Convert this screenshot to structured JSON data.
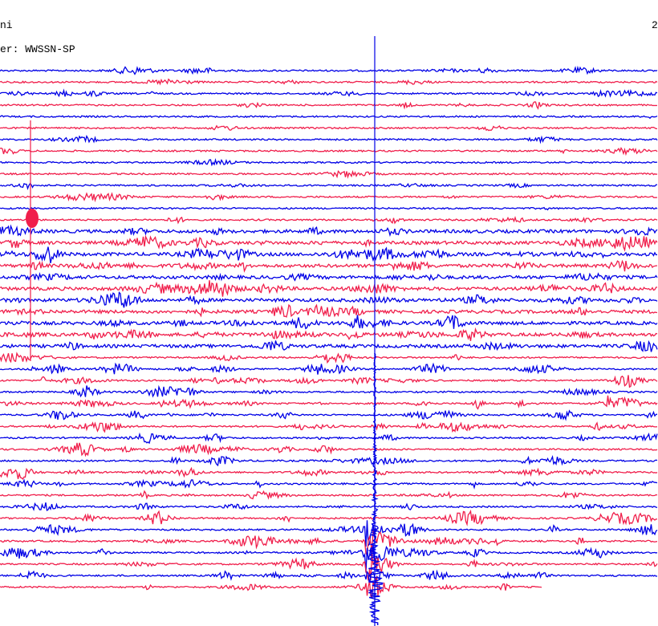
{
  "header": {
    "station": "ni",
    "date": "2",
    "filter": "er: WWSSN-SP"
  },
  "trace_colors": [
    "#0000e6",
    "#f01e4b"
  ]
}
